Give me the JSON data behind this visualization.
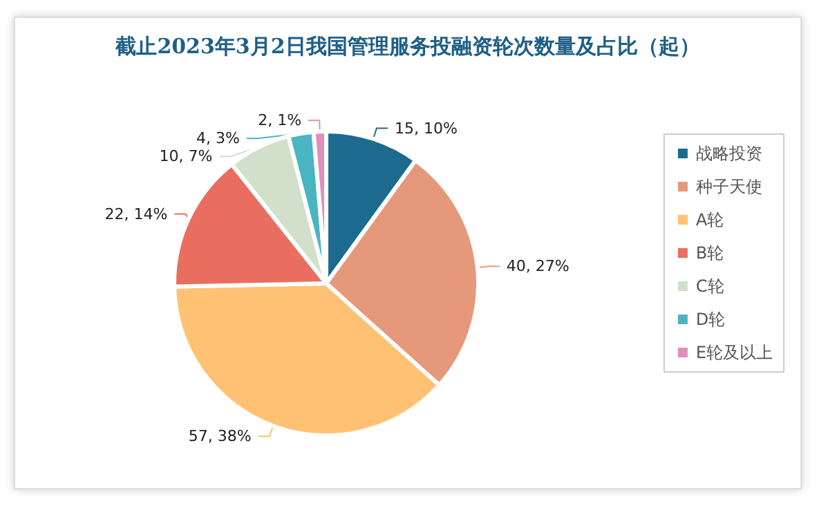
{
  "chart_data": {
    "type": "pie",
    "title": "截止2023年3月2日我国管理服务投融资轮次数量及占比（起）",
    "categories": [
      "战略投资",
      "种子天使",
      "A轮",
      "B轮",
      "C轮",
      "D轮",
      "E轮及以上"
    ],
    "values": [
      15,
      40,
      57,
      22,
      10,
      4,
      2
    ],
    "colors": [
      "#1d6a8f",
      "#e6997a",
      "#ffc274",
      "#ea6e5f",
      "#d2dfcb",
      "#4ab4c1",
      "#e08fbb"
    ],
    "value_labels": [
      "15, 10%",
      "40, 27%",
      "57, 38%",
      "22, 14%",
      "10, 7%",
      "4, 3%",
      "2, 1%"
    ],
    "legend": "right"
  }
}
